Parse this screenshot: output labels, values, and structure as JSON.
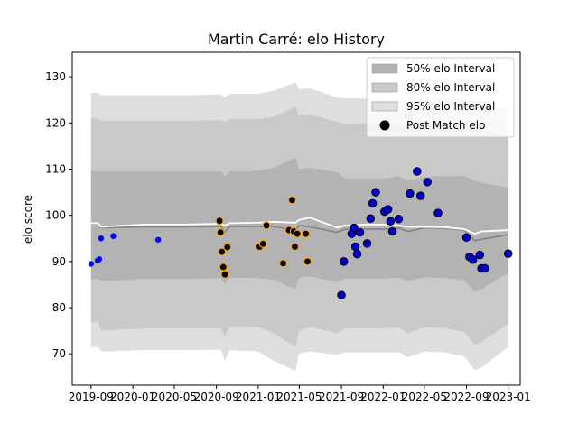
{
  "chart_data": {
    "type": "line",
    "title": "Martin Carré: elo History",
    "xlabel": "",
    "ylabel": "elo score",
    "xlim": [
      "2019-07-08",
      "2023-02-05"
    ],
    "ylim": [
      63.2,
      135.3
    ],
    "x_ticks": [
      "2019-09",
      "2020-01",
      "2020-05",
      "2020-09",
      "2021-01",
      "2021-05",
      "2021-09",
      "2022-01",
      "2022-05",
      "2022-09",
      "2023-01"
    ],
    "x_tick_dates": [
      "2019-09-01",
      "2020-01-01",
      "2020-05-01",
      "2020-09-01",
      "2021-01-01",
      "2021-05-01",
      "2021-09-01",
      "2022-01-01",
      "2022-05-01",
      "2022-09-01",
      "2023-01-01"
    ],
    "y_ticks": [
      70,
      80,
      90,
      100,
      110,
      120,
      130
    ],
    "grid": false,
    "legend_position": "top-right",
    "legend": [
      {
        "label": "50% elo Interval",
        "kind": "patch",
        "color": "#b3b3b3"
      },
      {
        "label": "80% elo Interval",
        "kind": "patch",
        "color": "#c9c9c9"
      },
      {
        "label": "95% elo Interval",
        "kind": "patch",
        "color": "#dedede"
      },
      {
        "label": "Post Match elo",
        "kind": "marker",
        "color": "#000000"
      }
    ],
    "colors": {
      "band50": "#b3b3b3",
      "band80": "#c9c9c9",
      "band95": "#dedede",
      "mean_line": "#808080",
      "median_line": "#ffffff",
      "early_points": "#0000ff",
      "orange_group": "#ffa500",
      "blue_group": "#0000cd"
    },
    "series": [
      {
        "role": "mean",
        "x": [
          "2019-09-01",
          "2019-09-21",
          "2019-10-01",
          "2020-02-01",
          "2020-06-01",
          "2020-09-15",
          "2020-09-25",
          "2020-10-10",
          "2021-01-01",
          "2021-02-15",
          "2021-04-20",
          "2021-04-30",
          "2021-06-01",
          "2021-08-20",
          "2021-09-10",
          "2021-11-01",
          "2022-01-01",
          "2022-02-15",
          "2022-03-15",
          "2022-05-01",
          "2022-07-01",
          "2022-08-25",
          "2022-09-25",
          "2022-10-15",
          "2023-01-01"
        ],
        "y": [
          98.3,
          98.3,
          97.3,
          97.5,
          97.5,
          97.6,
          96.3,
          97.6,
          97.6,
          97.6,
          96.7,
          97.8,
          97.5,
          96.3,
          97.0,
          97.0,
          97.0,
          97.2,
          96.5,
          97.3,
          97.2,
          96.8,
          94.5,
          94.8,
          95.8
        ]
      },
      {
        "role": "median",
        "x": [
          "2019-09-01",
          "2019-09-21",
          "2019-10-01",
          "2020-02-01",
          "2020-06-01",
          "2020-09-15",
          "2020-09-25",
          "2020-10-10",
          "2021-01-01",
          "2021-02-15",
          "2021-04-20",
          "2021-04-30",
          "2021-06-01",
          "2021-08-20",
          "2021-09-10",
          "2021-11-01",
          "2022-01-01",
          "2022-02-15",
          "2022-03-15",
          "2022-05-01",
          "2022-07-01",
          "2022-08-25",
          "2022-09-25",
          "2022-10-15",
          "2023-01-01"
        ],
        "y": [
          98.3,
          98.3,
          97.5,
          98.0,
          98.0,
          98.2,
          97.8,
          98.3,
          98.4,
          98.6,
          98.4,
          99.0,
          99.5,
          97.3,
          97.8,
          98.0,
          98.0,
          97.8,
          97.5,
          97.5,
          97.4,
          97.0,
          96.0,
          96.5,
          96.8
        ]
      },
      {
        "role": "interval",
        "x": [
          "2019-09-01",
          "2019-09-21",
          "2019-10-01",
          "2020-02-01",
          "2020-06-01",
          "2020-09-15",
          "2020-09-25",
          "2020-10-10",
          "2021-01-01",
          "2021-02-15",
          "2021-04-20",
          "2021-04-30",
          "2021-06-01",
          "2021-08-20",
          "2021-09-10",
          "2021-11-01",
          "2022-01-01",
          "2022-02-15",
          "2022-03-15",
          "2022-05-01",
          "2022-07-01",
          "2022-08-25",
          "2022-09-25",
          "2022-10-15",
          "2023-01-01"
        ],
        "low50": [
          86.3,
          86.3,
          85.7,
          86.2,
          86.2,
          86.4,
          85.2,
          86.5,
          86.4,
          86.0,
          84.0,
          86.5,
          86.8,
          85.5,
          86.3,
          86.3,
          86.3,
          86.5,
          85.8,
          86.6,
          86.4,
          86.0,
          83.5,
          84.0,
          87.5
        ],
        "high50": [
          109.5,
          109.5,
          109.5,
          109.5,
          109.5,
          109.5,
          108.5,
          109.5,
          109.6,
          110.3,
          112.5,
          110.0,
          110.3,
          109.3,
          108.0,
          108.0,
          108.0,
          108.5,
          107.5,
          108.3,
          108.5,
          108.5,
          107.5,
          107.0,
          106.0
        ],
        "low80": [
          76.8,
          76.8,
          75.0,
          75.5,
          75.5,
          75.5,
          73.8,
          75.8,
          75.8,
          74.5,
          71.5,
          75.0,
          75.8,
          74.5,
          75.5,
          75.5,
          75.5,
          75.7,
          74.5,
          75.8,
          75.5,
          74.8,
          72.0,
          72.5,
          76.5
        ],
        "high80": [
          121.0,
          121.0,
          120.5,
          120.5,
          120.5,
          120.6,
          120.2,
          120.8,
          120.8,
          121.3,
          123.5,
          121.5,
          121.8,
          120.2,
          119.8,
          119.8,
          119.8,
          119.8,
          119.0,
          119.8,
          120.0,
          120.0,
          119.0,
          118.5,
          117.5
        ],
        "low95": [
          71.5,
          71.5,
          70.5,
          70.8,
          70.8,
          70.9,
          68.5,
          70.8,
          70.5,
          68.5,
          66.3,
          70.0,
          70.5,
          69.8,
          70.3,
          70.3,
          70.3,
          70.3,
          69.3,
          70.5,
          70.3,
          69.5,
          66.5,
          67.0,
          71.5
        ],
        "high95": [
          126.5,
          126.5,
          126.0,
          126.0,
          126.0,
          126.2,
          125.5,
          126.3,
          126.3,
          127.0,
          128.8,
          127.3,
          127.5,
          125.5,
          125.3,
          125.3,
          125.3,
          125.3,
          124.5,
          125.3,
          125.5,
          125.5,
          124.5,
          124.0,
          123.0
        ]
      },
      {
        "name": "Post Match elo",
        "x": [
          "2019-09-01",
          "2019-09-20",
          "2019-09-25",
          "2019-09-30",
          "2019-11-05",
          "2020-03-15",
          "2020-09-10",
          "2020-09-13",
          "2020-09-17",
          "2020-09-21",
          "2020-09-26",
          "2020-10-03",
          "2021-01-05",
          "2021-01-15",
          "2021-01-25",
          "2021-03-15",
          "2021-04-01",
          "2021-04-10",
          "2021-04-15",
          "2021-04-18",
          "2021-04-25",
          "2021-05-20",
          "2021-05-25",
          "2021-09-01",
          "2021-09-08",
          "2021-10-01",
          "2021-10-08",
          "2021-10-12",
          "2021-10-17",
          "2021-10-25",
          "2021-11-15",
          "2021-11-25",
          "2021-12-01",
          "2021-12-10",
          "2022-01-05",
          "2022-01-15",
          "2022-01-22",
          "2022-01-28",
          "2022-02-15",
          "2022-03-20",
          "2022-04-10",
          "2022-04-20",
          "2022-05-10",
          "2022-06-10",
          "2022-09-01",
          "2022-09-10",
          "2022-09-20",
          "2022-10-10",
          "2022-10-15",
          "2022-10-25",
          "2023-01-01"
        ],
        "y": [
          89.5,
          90.2,
          90.5,
          95.0,
          95.5,
          94.7,
          98.8,
          96.3,
          92.1,
          88.8,
          87.2,
          93.1,
          93.2,
          93.8,
          97.8,
          89.6,
          96.8,
          103.3,
          96.5,
          93.2,
          96.0,
          96.0,
          90.0,
          82.7,
          90.0,
          96.0,
          97.3,
          93.2,
          91.6,
          96.3,
          93.9,
          99.3,
          102.6,
          105.0,
          100.8,
          101.3,
          98.7,
          96.5,
          99.2,
          104.7,
          109.5,
          104.2,
          107.2,
          100.5,
          95.2,
          91.0,
          90.4,
          91.4,
          88.5,
          88.5,
          91.7
        ],
        "point_group": [
          "early",
          "early",
          "early",
          "early",
          "early",
          "early",
          "orange",
          "orange",
          "orange",
          "orange",
          "orange",
          "orange",
          "orange",
          "orange",
          "orange",
          "orange",
          "orange",
          "orange",
          "orange",
          "orange",
          "orange",
          "orange",
          "orange",
          "blue",
          "blue",
          "blue",
          "blue",
          "blue",
          "blue",
          "blue",
          "blue",
          "blue",
          "blue",
          "blue",
          "blue",
          "blue",
          "blue",
          "blue",
          "blue",
          "blue",
          "blue",
          "blue",
          "blue",
          "blue",
          "blue",
          "blue",
          "blue",
          "blue",
          "blue",
          "blue",
          "blue"
        ]
      }
    ]
  }
}
